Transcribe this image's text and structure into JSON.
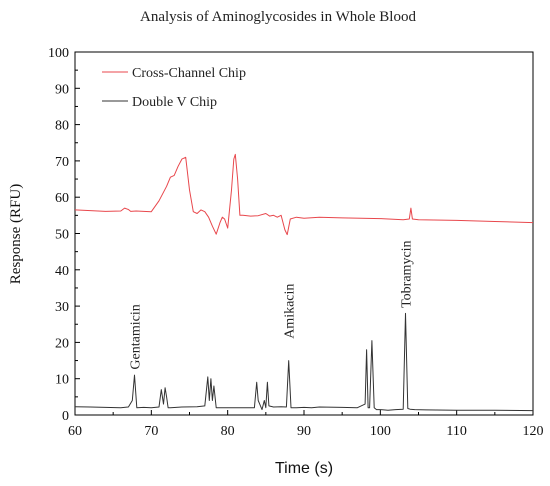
{
  "chart_data": {
    "type": "line",
    "title": "Analysis of Aminoglycosides in Whole Blood",
    "xlabel": "Time (s)",
    "ylabel": "Response (RFU)",
    "xlim": [
      60,
      120
    ],
    "ylim": [
      0,
      100
    ],
    "xticks": [
      60,
      70,
      80,
      90,
      100,
      110,
      120
    ],
    "yticks": [
      0,
      10,
      20,
      30,
      40,
      50,
      60,
      70,
      80,
      90,
      100
    ],
    "grid": false,
    "legend": "top-left",
    "series": [
      {
        "name": "Cross-Channel Chip",
        "color": "#e8474c",
        "x": [
          60,
          62,
          64,
          66,
          66.5,
          67,
          67.3,
          68,
          70,
          71,
          72,
          72.5,
          73,
          73.5,
          74,
          74.5,
          75,
          75.5,
          76,
          76.5,
          77,
          77.5,
          78,
          78.5,
          79,
          79.3,
          79.6,
          80,
          80.5,
          80.8,
          81,
          81.3,
          81.6,
          82,
          83,
          84,
          85,
          85.5,
          86,
          86.5,
          87,
          87.5,
          87.8,
          88.2,
          89,
          90,
          92,
          95,
          100,
          103,
          103.8,
          104,
          104.2,
          105,
          110,
          115,
          120
        ],
        "y": [
          56.5,
          56.3,
          56.1,
          56.2,
          57.0,
          56.6,
          56.1,
          56.2,
          56.0,
          59.0,
          63.0,
          65.5,
          66.0,
          68.5,
          70.5,
          71.0,
          62.0,
          56.0,
          55.5,
          56.5,
          56.0,
          54.5,
          52.0,
          49.8,
          53.0,
          54.5,
          54.0,
          51.5,
          62.0,
          70.5,
          71.8,
          65.0,
          55.0,
          55.0,
          54.8,
          54.9,
          55.5,
          54.8,
          55.0,
          54.5,
          55.0,
          51.0,
          49.7,
          54.0,
          54.5,
          54.2,
          54.5,
          54.3,
          54.1,
          53.8,
          54.0,
          57.0,
          54.0,
          53.8,
          53.6,
          53.3,
          53.0
        ]
      },
      {
        "name": "Double V Chip",
        "color": "#333333",
        "x": [
          60,
          62,
          64,
          66,
          67,
          67.5,
          67.8,
          68.1,
          69,
          70,
          71,
          71.3,
          71.6,
          71.8,
          72,
          72.2,
          72.5,
          74,
          76,
          77,
          77.4,
          77.6,
          77.8,
          78,
          78.2,
          78.5,
          80,
          82,
          83.5,
          83.8,
          84,
          84.2,
          84.5,
          84.8,
          85,
          85.2,
          85.4,
          86,
          87,
          87.7,
          88,
          88.3,
          89,
          90,
          91,
          92,
          95,
          97,
          98,
          98.2,
          98.4,
          98.6,
          98.9,
          99.2,
          99.5,
          100,
          101,
          102,
          103,
          103.3,
          103.6,
          103.9,
          104.5,
          106,
          110,
          115,
          120
        ],
        "y": [
          2.3,
          2.2,
          2.1,
          2.0,
          2.2,
          4.0,
          11.0,
          2.0,
          2.1,
          2.0,
          2.2,
          7.0,
          3.0,
          7.5,
          5.0,
          2.0,
          2.0,
          2.2,
          2.3,
          2.5,
          10.5,
          4.0,
          10.0,
          4.0,
          8.0,
          2.0,
          2.0,
          2.0,
          2.0,
          9.0,
          4.0,
          3.0,
          1.5,
          4.0,
          2.0,
          9.0,
          2.5,
          2.2,
          2.3,
          2.2,
          15.0,
          2.0,
          2.0,
          2.1,
          2.0,
          2.2,
          2.1,
          2.0,
          3.0,
          18.0,
          2.0,
          2.0,
          20.5,
          2.0,
          1.5,
          1.5,
          1.3,
          1.5,
          1.6,
          28.0,
          1.8,
          1.6,
          1.5,
          1.4,
          1.3,
          1.3,
          1.2
        ]
      }
    ],
    "annotations": [
      {
        "text": "Gentamicin",
        "x": 67.8,
        "y": 12.5
      },
      {
        "text": "Amikacin",
        "x": 88.0,
        "y": 21.0
      },
      {
        "text": "Tobramycin",
        "x": 103.3,
        "y": 29.5
      }
    ]
  }
}
